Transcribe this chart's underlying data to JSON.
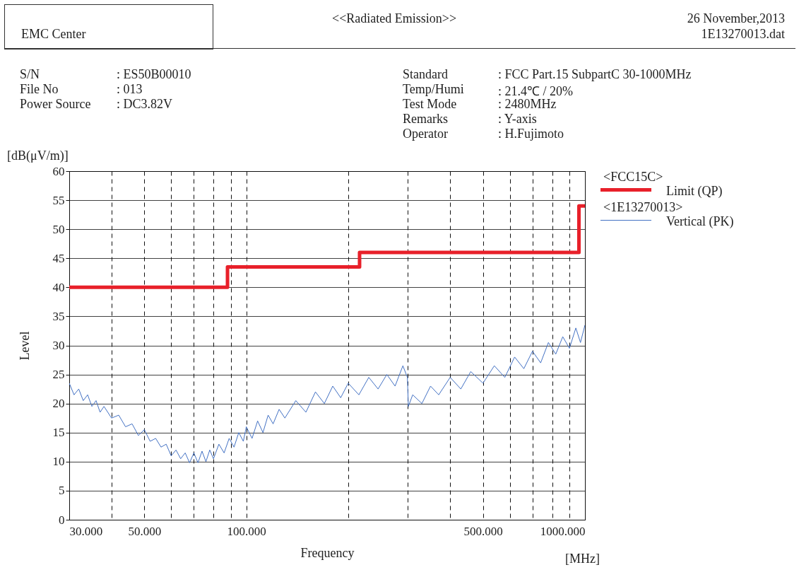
{
  "chart_data": {
    "type": "line",
    "title": "<<Radiated Emission>>",
    "xlabel": "Frequency",
    "ylabel": "Level",
    "annotations": [
      "EMC Center",
      "26 November,2013",
      "1E13270013.dat",
      "[dB(μV/m)]",
      "[MHz]",
      "<FCC15C>",
      "<1E13270013>",
      "S/N",
      ": ES50B00010",
      "File No",
      ": 013",
      "Power Source",
      ": DC3.82V",
      "Standard",
      ": FCC Part.15 SubpartC 30-1000MHz",
      "Temp/Humi",
      ": 21.4℃ / 20%",
      "Test Mode",
      ": 2480MHz",
      "Remarks",
      ": Y-axis",
      "Operator",
      ": H.Fujimoto"
    ],
    "log": "x",
    "grid": true,
    "legend": "right",
    "marker": "none",
    "line_style": "solid",
    "xlim": [
      30,
      1000
    ],
    "ylim": [
      0,
      60
    ],
    "xticks": [
      {
        "value": 30,
        "label": "30.000"
      },
      {
        "value": 40,
        "label": null
      },
      {
        "value": 50,
        "label": "50.000"
      },
      {
        "value": 60,
        "label": null
      },
      {
        "value": 70,
        "label": null
      },
      {
        "value": 80,
        "label": null
      },
      {
        "value": 90,
        "label": null
      },
      {
        "value": 100,
        "label": "100.000"
      },
      {
        "value": 200,
        "label": null
      },
      {
        "value": 300,
        "label": null
      },
      {
        "value": 400,
        "label": null
      },
      {
        "value": 500,
        "label": "500.000"
      },
      {
        "value": 600,
        "label": null
      },
      {
        "value": 700,
        "label": null
      },
      {
        "value": 800,
        "label": null
      },
      {
        "value": 900,
        "label": null
      },
      {
        "value": 1000,
        "label": "1000.000"
      }
    ],
    "yticks": [
      0,
      5,
      10,
      15,
      20,
      25,
      30,
      35,
      40,
      45,
      50,
      55,
      60
    ],
    "series": [
      {
        "name": "Limit (QP)",
        "type": "step",
        "color": "#e8202a",
        "x": [
          30,
          88,
          216,
          960,
          1000
        ],
        "values": [
          40,
          43.5,
          46,
          54,
          54
        ]
      },
      {
        "name": "Vertical (PK)",
        "color": "#4472c4",
        "x": [
          30,
          31,
          32,
          33,
          34,
          35,
          36,
          37,
          38,
          40,
          42,
          44,
          46,
          48,
          50,
          52,
          54,
          56,
          58,
          60,
          62,
          64,
          66,
          68,
          70,
          72,
          74,
          76,
          78,
          80,
          83,
          86,
          89,
          92,
          95,
          98,
          100,
          104,
          108,
          112,
          116,
          120,
          125,
          130,
          140,
          150,
          160,
          170,
          180,
          190,
          200,
          215,
          230,
          245,
          260,
          275,
          290,
          299,
          301,
          310,
          330,
          350,
          370,
          400,
          430,
          460,
          500,
          540,
          580,
          620,
          660,
          700,
          740,
          780,
          820,
          860,
          900,
          940,
          970,
          1000
        ],
        "values": [
          23.5,
          21.5,
          22.5,
          20.5,
          21.5,
          19.5,
          20.5,
          18.5,
          19.5,
          17.5,
          18,
          16,
          16.5,
          14.5,
          15.5,
          13.5,
          14,
          12.5,
          13,
          11,
          12,
          10.5,
          11.5,
          9.8,
          11.5,
          9.8,
          11.8,
          10,
          12,
          10.5,
          13,
          11.5,
          14,
          12.5,
          15,
          13.5,
          16,
          14,
          17,
          15,
          18,
          16.5,
          19,
          17.5,
          20.5,
          18.5,
          22,
          20,
          23,
          21,
          23.5,
          21.5,
          24.5,
          22.5,
          25,
          23,
          26.5,
          24.5,
          19.5,
          21.5,
          20,
          23,
          21.5,
          24.5,
          22.5,
          25.5,
          23.5,
          26.5,
          24.5,
          28,
          26,
          29,
          27,
          30.5,
          28.5,
          31.5,
          29.5,
          33,
          30.5,
          33.5
        ]
      }
    ]
  }
}
